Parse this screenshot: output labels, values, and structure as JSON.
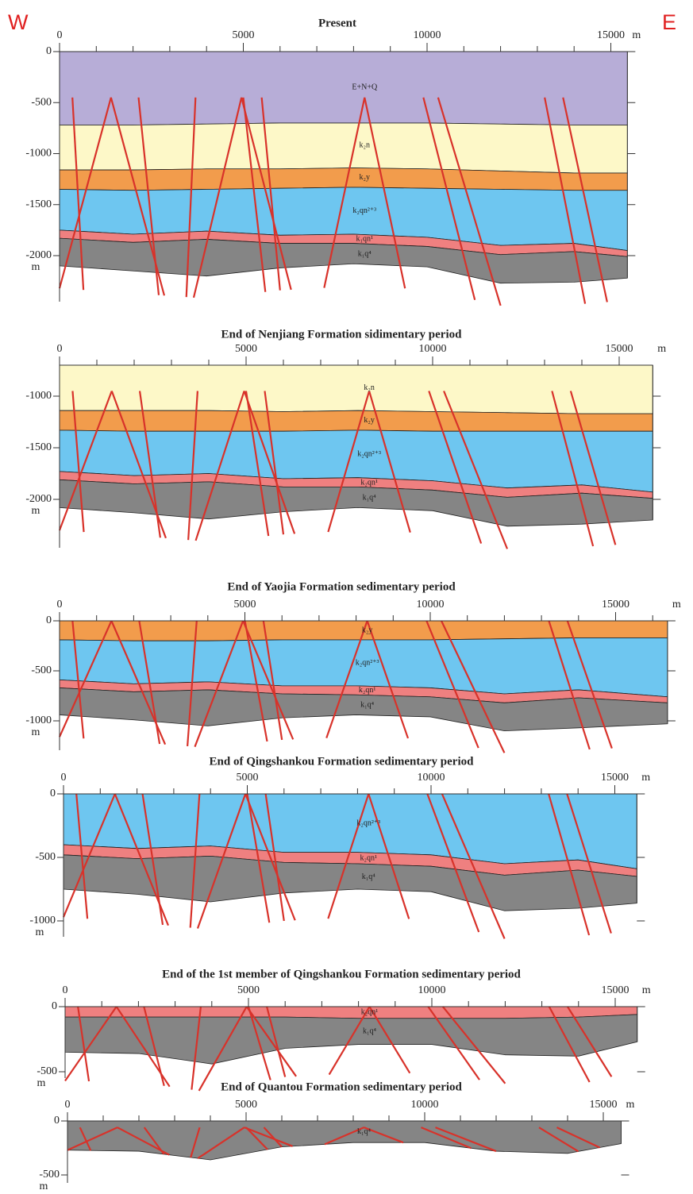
{
  "corner_labels": {
    "west": "W",
    "east": "E"
  },
  "panels": [
    {
      "title": "Present",
      "xticks": [
        0,
        5000,
        10000,
        15000
      ],
      "x_unit": "m",
      "yticks": [
        0,
        -500,
        -1000,
        -1500,
        -2000
      ],
      "y_unit": "m",
      "layers": [
        "E+N+Q",
        "k₂n",
        "k₂y",
        "k₂qn²⁺³",
        "k₁qn¹",
        "k₁q⁴"
      ]
    },
    {
      "title": "End of Nenjiang Formation sidimentary period",
      "xticks": [
        0,
        5000,
        10000,
        15000
      ],
      "x_unit": "m",
      "yticks": [
        -1000,
        -1500,
        -2000
      ],
      "y_unit": "m",
      "layers": [
        "k₂n",
        "k₂y",
        "k₂qn²⁺³",
        "k₂qn¹",
        "k₁q⁴"
      ]
    },
    {
      "title": "End of Yaojia Formation sedimentary period",
      "xticks": [
        0,
        5000,
        10000,
        15000
      ],
      "x_unit": "m",
      "yticks": [
        0,
        -500,
        -1000
      ],
      "y_unit": "m",
      "layers": [
        "k₂y",
        "k₂qn²⁺³",
        "k₂qn¹",
        "k₁q⁴"
      ]
    },
    {
      "title": "End of Qingshankou Formation sedimentary period",
      "xticks": [
        0,
        5000,
        10000,
        15000
      ],
      "x_unit": "m",
      "yticks": [
        0,
        -500,
        -1000
      ],
      "y_unit": "m",
      "layers": [
        "k₂qn²⁺³",
        "k₂qn¹",
        "k₁q⁴"
      ]
    },
    {
      "title": "End of the 1st member of Qingshankou Formation sedimentary period",
      "xticks": [
        0,
        5000,
        10000,
        15000
      ],
      "x_unit": "m",
      "yticks": [
        0,
        -500
      ],
      "y_unit": "m",
      "layers": [
        "k₂qn¹",
        "k₁q⁴"
      ]
    },
    {
      "title": "End of Quantou Formation sedimentary period",
      "xticks": [
        0,
        5000,
        10000,
        15000
      ],
      "x_unit": "m",
      "yticks": [
        0,
        -500
      ],
      "y_unit": "m",
      "layers": [
        "k₁q⁴"
      ]
    }
  ]
}
